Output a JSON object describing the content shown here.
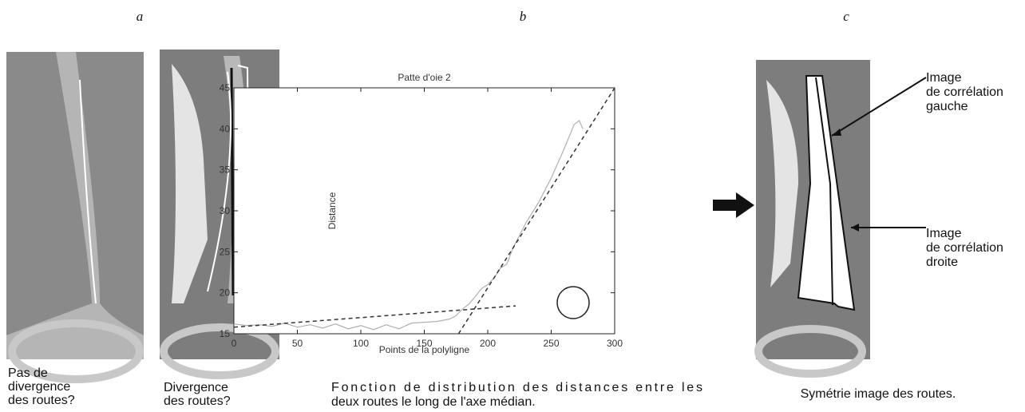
{
  "panels": [
    {
      "letter": "a",
      "captions": [
        [
          "Pas de",
          "divergence",
          "des routes?"
        ],
        [
          "Divergence",
          "des routes?"
        ]
      ]
    },
    {
      "letter": "b",
      "captions": [
        [
          "Fonction de distribution des distances entre les",
          "deux routes le long de l'axe médian."
        ]
      ]
    },
    {
      "letter": "c",
      "captions": [
        [
          "Symétrie image des routes."
        ]
      ],
      "annotations": [
        [
          "Image",
          "de corrélation",
          "gauche"
        ],
        [
          "Image",
          "de corrélation",
          "droite"
        ]
      ]
    }
  ],
  "chart_data": {
    "type": "line",
    "title": "Patte d'oie 2",
    "x_label": "Points de la polyligne",
    "y_label": "Distance",
    "xlim": [
      0,
      300
    ],
    "xticks": [
      0,
      50,
      100,
      150,
      200,
      250,
      300
    ],
    "ylim": [
      15,
      45
    ],
    "yticks": [
      15,
      20,
      25,
      30,
      35,
      40,
      45
    ],
    "series": [
      {
        "color": "#b0b0b0",
        "dash": false,
        "x": [
          0,
          10,
          20,
          30,
          40,
          50,
          60,
          70,
          80,
          90,
          100,
          110,
          120,
          130,
          140,
          150,
          160,
          170,
          175,
          180,
          185,
          190,
          195,
          200,
          205,
          210,
          215,
          220,
          230,
          240,
          250,
          260,
          268,
          272,
          275
        ],
        "values": [
          16.2,
          16.0,
          16.1,
          15.9,
          16.3,
          15.8,
          16.1,
          15.7,
          16.2,
          15.6,
          16.0,
          15.5,
          16.1,
          15.6,
          16.3,
          16.4,
          16.5,
          16.8,
          17.2,
          18.0,
          18.6,
          19.5,
          20.5,
          21.0,
          21.8,
          23.0,
          23.5,
          25.5,
          28.5,
          31.0,
          34.0,
          37.5,
          40.5,
          41.0,
          40.0
        ]
      },
      {
        "color": "#333333",
        "dash": true,
        "x": [
          0,
          222
        ],
        "values": [
          15.8,
          18.4
        ]
      },
      {
        "color": "#333333",
        "dash": true,
        "x": [
          177,
          300
        ],
        "values": [
          15,
          45
        ]
      }
    ]
  }
}
